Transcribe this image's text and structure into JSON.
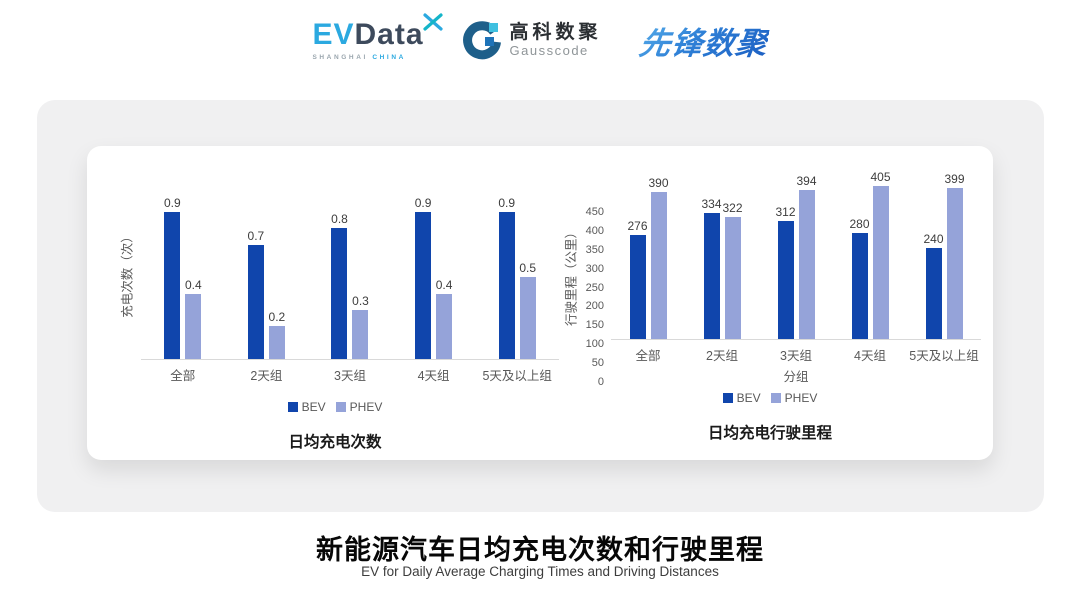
{
  "header": {
    "logo_evdata": {
      "ev": "EV",
      "data": "Data",
      "sub_left": "SHANGHAI",
      "sub_right": "CHINA"
    },
    "logo_gausscode": {
      "cn": "高科数聚",
      "en": "Gausscode"
    },
    "logo_xianfeng": {
      "text": "先锋数聚"
    }
  },
  "chart_data": [
    {
      "type": "bar",
      "title": "日均充电次数",
      "ylabel": "充电次数（次）",
      "xlabel": "",
      "categories": [
        "全部",
        "2天组",
        "3天组",
        "4天组",
        "5天及以上组"
      ],
      "series": [
        {
          "name": "BEV",
          "color": "#1045AC",
          "values": [
            0.9,
            0.7,
            0.8,
            0.9,
            0.9
          ]
        },
        {
          "name": "PHEV",
          "color": "#95A3D9",
          "values": [
            0.4,
            0.2,
            0.3,
            0.4,
            0.5
          ]
        }
      ],
      "ylim": [
        0,
        1.2
      ],
      "yticks": [],
      "grid": false,
      "legend_position": "bottom",
      "value_labels": true
    },
    {
      "type": "bar",
      "title": "日均充电行驶里程",
      "ylabel": "行驶里程（公里）",
      "xlabel": "分组",
      "categories": [
        "全部",
        "2天组",
        "3天组",
        "4天组",
        "5天及以上组"
      ],
      "series": [
        {
          "name": "BEV",
          "color": "#1045AC",
          "values": [
            276,
            334,
            312,
            280,
            240
          ]
        },
        {
          "name": "PHEV",
          "color": "#95A3D9",
          "values": [
            390,
            322,
            394,
            405,
            399
          ]
        }
      ],
      "ylim": [
        0,
        450
      ],
      "yticks": [
        0,
        50,
        100,
        150,
        200,
        250,
        300,
        350,
        400,
        450
      ],
      "grid": false,
      "legend_position": "bottom",
      "value_labels": true
    }
  ],
  "footer": {
    "title": "新能源汽车日均充电次数和行驶里程",
    "subtitle": "EV for Daily Average Charging Times and Driving Distances"
  },
  "colors": {
    "bev": "#1045AC",
    "phev": "#95A3D9",
    "axis_text": "#595959",
    "axis_line": "#D9D9D9",
    "panel_bg": "#F0F0F1",
    "card_bg": "#FFFFFF"
  }
}
